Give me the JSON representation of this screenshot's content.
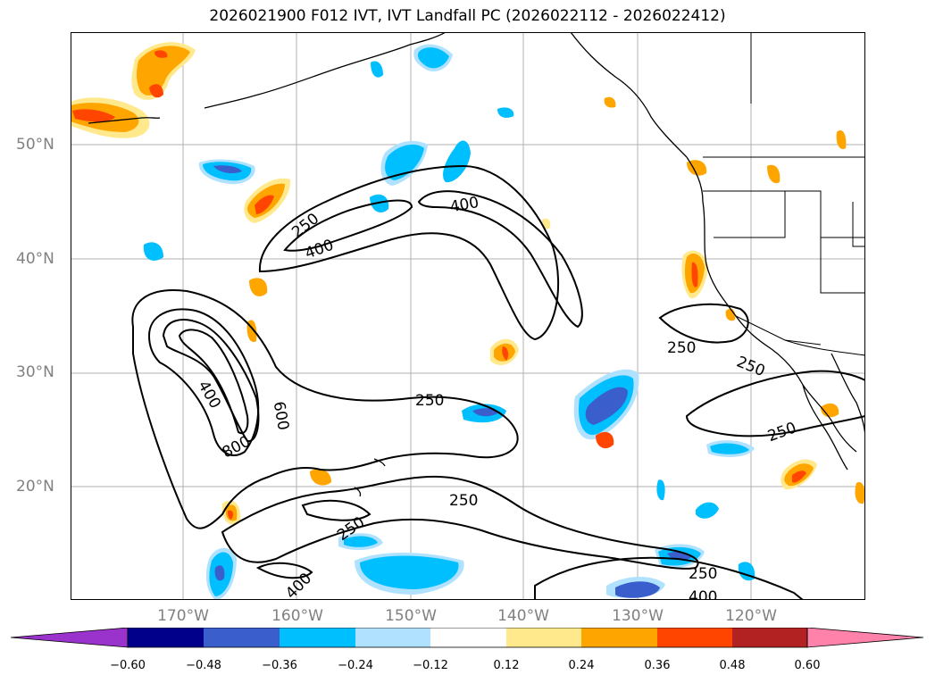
{
  "title": "2026021900 F012 IVT, IVT Landfall PC (2026022112 - 2026022412)",
  "lat_labels": [
    "50°N",
    "40°N",
    "30°N",
    "20°N"
  ],
  "lon_labels": [
    "170°W",
    "160°W",
    "150°W",
    "140°W",
    "130°W",
    "120°W"
  ],
  "contour_labels": [
    "250",
    "400",
    "250",
    "400",
    "400",
    "600",
    "800",
    "250",
    "250",
    "400",
    "250",
    "250",
    "250",
    "250",
    "400"
  ],
  "colorbar": {
    "ticks": [
      "−0.60",
      "−0.48",
      "−0.36",
      "−0.24",
      "−0.12",
      "0.12",
      "0.24",
      "0.36",
      "0.48",
      "0.60"
    ],
    "colors": [
      "#9933cc",
      "#00008b",
      "#3a5fcd",
      "#00bfff",
      "#b0e2ff",
      "#ffffff",
      "#ffe98c",
      "#ffa500",
      "#ff4500",
      "#b22222",
      "#ff82ab"
    ]
  },
  "colors": {
    "blue": "#00bfff",
    "blue_light": "#b0e2ff",
    "blue_dark": "#3a5fcd",
    "orange": "#ffa500",
    "yellow": "#ffe98c",
    "red": "#ff4500"
  }
}
